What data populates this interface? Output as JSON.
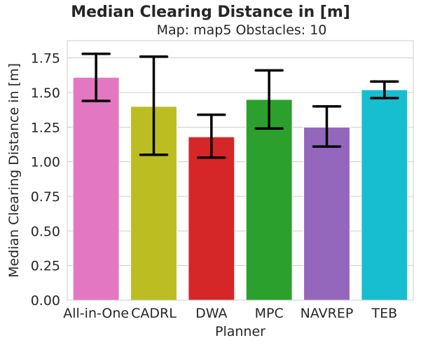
{
  "chart_data": {
    "type": "bar",
    "title": "Median Clearing Distance in [m]",
    "subtitle": "Map: map5 Obstacles: 10",
    "xlabel": "Planner",
    "ylabel": "Median Clearing Distance in [m]",
    "ylim": [
      0,
      1.875
    ],
    "yticks": [
      "0.00",
      "0.25",
      "0.50",
      "0.75",
      "1.00",
      "1.25",
      "1.50",
      "1.75"
    ],
    "grid": "horizontal",
    "categories": [
      "All-in-One",
      "CADRL",
      "DWA",
      "MPC",
      "NAVREP",
      "TEB"
    ],
    "values": [
      1.61,
      1.4,
      1.18,
      1.45,
      1.25,
      1.52
    ],
    "error_low": [
      1.44,
      1.05,
      1.03,
      1.24,
      1.11,
      1.46
    ],
    "error_high": [
      1.78,
      1.76,
      1.34,
      1.66,
      1.4,
      1.58
    ],
    "colors": [
      "#e377c2",
      "#bcbd22",
      "#d62728",
      "#2ca02c",
      "#9467bd",
      "#17becf"
    ]
  }
}
